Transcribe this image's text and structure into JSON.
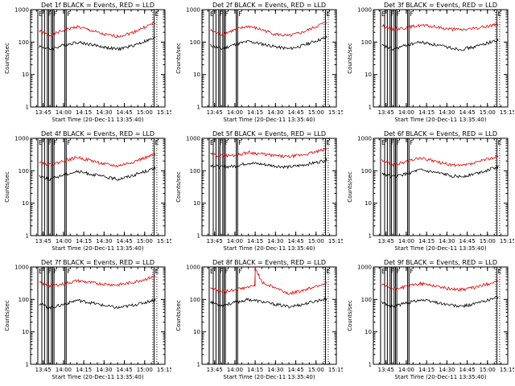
{
  "colors": {
    "events": "#000000",
    "lld": "#e00000",
    "axis": "#000000",
    "background": "#ffffff"
  },
  "chart_data": [
    {
      "type": "line",
      "title": "Det 1f BLACK = Events, RED = LLD",
      "xlabel": "Start Time (20-Dec-11 13:35:40)",
      "ylabel": "Counts/sec",
      "xlim": [
        "13:35:40",
        "15:15:00"
      ],
      "ylim": [
        1,
        1000
      ],
      "yscale": "log",
      "grid": false,
      "x_tick_labels": [
        "13:45",
        "14:00",
        "14:15",
        "14:30",
        "14:45",
        "15:00",
        "15:15"
      ],
      "y_tick_labels": [
        "1",
        "10",
        "100",
        "1000"
      ],
      "flag_labels": [
        "E",
        "F",
        "F",
        "F",
        "E"
      ],
      "series": [
        {
          "x": [
            "13:42",
            "13:50",
            "14:00",
            "14:10",
            "14:20",
            "14:30",
            "14:40",
            "14:50",
            "15:00",
            "15:08"
          ],
          "values": [
            220,
            160,
            230,
            300,
            230,
            170,
            150,
            190,
            290,
            400
          ]
        },
        {
          "x": [
            "13:42",
            "13:50",
            "14:00",
            "14:10",
            "14:20",
            "14:30",
            "14:40",
            "14:50",
            "15:00",
            "15:08"
          ],
          "values": [
            75,
            60,
            80,
            100,
            85,
            70,
            60,
            75,
            105,
            135
          ]
        }
      ]
    },
    {
      "type": "line",
      "title": "Det 2f BLACK = Events, RED = LLD",
      "xlabel": "Start Time (20-Dec-11 13:35:40)",
      "ylabel": "Counts/sec",
      "xlim": [
        "13:35:40",
        "15:15:00"
      ],
      "ylim": [
        1,
        1000
      ],
      "yscale": "log",
      "grid": false,
      "x_tick_labels": [
        "13:45",
        "14:00",
        "14:15",
        "14:30",
        "14:45",
        "15:00",
        "15:15"
      ],
      "y_tick_labels": [
        "1",
        "10",
        "100",
        "1000"
      ],
      "flag_labels": [
        "E",
        "F",
        "F",
        "F",
        "E"
      ],
      "series": [
        {
          "x": [
            "13:42",
            "13:50",
            "14:00",
            "14:10",
            "14:20",
            "14:30",
            "14:40",
            "14:50",
            "15:00",
            "15:08"
          ],
          "values": [
            230,
            170,
            240,
            310,
            240,
            175,
            155,
            200,
            300,
            420
          ]
        },
        {
          "x": [
            "13:42",
            "13:50",
            "14:00",
            "14:10",
            "14:20",
            "14:30",
            "14:40",
            "14:50",
            "15:00",
            "15:08"
          ],
          "values": [
            80,
            62,
            85,
            105,
            88,
            72,
            62,
            78,
            110,
            140
          ]
        }
      ]
    },
    {
      "type": "line",
      "title": "Det 3f BLACK = Events, RED = LLD",
      "xlabel": "Start Time (20-Dec-11 13:35:40)",
      "ylabel": "Counts/sec",
      "xlim": [
        "13:35:40",
        "15:15:00"
      ],
      "ylim": [
        1,
        1000
      ],
      "yscale": "log",
      "grid": false,
      "x_tick_labels": [
        "13:45",
        "14:00",
        "14:15",
        "14:30",
        "14:45",
        "15:00",
        "15:15"
      ],
      "y_tick_labels": [
        "1",
        "10",
        "100",
        "1000"
      ],
      "flag_labels": [
        "E",
        "F",
        "F",
        "F",
        "E"
      ],
      "series": [
        {
          "x": [
            "13:42",
            "13:50",
            "14:00",
            "14:10",
            "14:20",
            "14:30",
            "14:40",
            "14:50",
            "15:00",
            "15:08"
          ],
          "values": [
            320,
            250,
            280,
            330,
            300,
            260,
            240,
            260,
            310,
            360
          ]
        },
        {
          "x": [
            "13:42",
            "13:50",
            "14:00",
            "14:10",
            "14:20",
            "14:30",
            "14:40",
            "14:50",
            "15:00",
            "15:08"
          ],
          "values": [
            80,
            60,
            80,
            100,
            85,
            70,
            60,
            70,
            95,
            115
          ]
        }
      ]
    },
    {
      "type": "line",
      "title": "Det 4f BLACK = Events, RED = LLD",
      "xlabel": "Start Time (20-Dec-11 13:35:40)",
      "ylabel": "Counts/sec",
      "xlim": [
        "13:35:40",
        "15:15:00"
      ],
      "ylim": [
        1,
        1000
      ],
      "yscale": "log",
      "grid": false,
      "x_tick_labels": [
        "13:45",
        "14:00",
        "14:15",
        "14:30",
        "14:45",
        "15:00",
        "15:15"
      ],
      "y_tick_labels": [
        "1",
        "10",
        "100",
        "1000"
      ],
      "flag_labels": [
        "E",
        "F",
        "F",
        "F",
        "E"
      ],
      "series": [
        {
          "x": [
            "13:42",
            "13:50",
            "14:00",
            "14:10",
            "14:20",
            "14:30",
            "14:40",
            "14:50",
            "15:00",
            "15:08"
          ],
          "values": [
            200,
            150,
            200,
            260,
            210,
            160,
            140,
            180,
            250,
            320
          ]
        },
        {
          "x": [
            "13:42",
            "13:50",
            "14:00",
            "14:10",
            "14:20",
            "14:30",
            "14:40",
            "14:50",
            "15:00",
            "15:08"
          ],
          "values": [
            70,
            55,
            75,
            95,
            80,
            65,
            55,
            70,
            95,
            120
          ]
        }
      ]
    },
    {
      "type": "line",
      "title": "Det 5f BLACK = Events, RED = LLD",
      "xlabel": "Start Time (20-Dec-11 13:35:40)",
      "ylabel": "Counts/sec",
      "xlim": [
        "13:35:40",
        "15:15:00"
      ],
      "ylim": [
        1,
        1000
      ],
      "yscale": "log",
      "grid": false,
      "x_tick_labels": [
        "13:45",
        "14:00",
        "14:15",
        "14:30",
        "14:45",
        "15:00",
        "15:15"
      ],
      "y_tick_labels": [
        "1",
        "10",
        "100",
        "1000"
      ],
      "flag_labels": [
        "E",
        "F",
        "F",
        "F",
        "E"
      ],
      "series": [
        {
          "x": [
            "13:42",
            "13:50",
            "14:00",
            "14:10",
            "14:20",
            "14:30",
            "14:40",
            "14:50",
            "15:00",
            "15:08"
          ],
          "values": [
            320,
            290,
            300,
            370,
            330,
            290,
            270,
            310,
            380,
            480
          ]
        },
        {
          "x": [
            "13:42",
            "13:50",
            "14:00",
            "14:10",
            "14:20",
            "14:30",
            "14:40",
            "14:50",
            "15:00",
            "15:08"
          ],
          "values": [
            150,
            130,
            140,
            175,
            160,
            140,
            130,
            150,
            180,
            220
          ]
        }
      ]
    },
    {
      "type": "line",
      "title": "Det 6f BLACK = Events, RED = LLD",
      "xlabel": "Start Time (20-Dec-11 13:35:40)",
      "ylabel": "Counts/sec",
      "xlim": [
        "13:35:40",
        "15:15:00"
      ],
      "ylim": [
        1,
        1000
      ],
      "yscale": "log",
      "grid": false,
      "x_tick_labels": [
        "13:45",
        "14:00",
        "14:15",
        "14:30",
        "14:45",
        "15:00",
        "15:15"
      ],
      "y_tick_labels": [
        "1",
        "10",
        "100",
        "1000"
      ],
      "flag_labels": [
        "E",
        "F",
        "F",
        "F",
        "E"
      ],
      "series": [
        {
          "x": [
            "13:42",
            "13:50",
            "14:00",
            "14:10",
            "14:20",
            "14:30",
            "14:40",
            "14:50",
            "15:00",
            "15:08"
          ],
          "values": [
            210,
            150,
            190,
            250,
            200,
            160,
            140,
            170,
            230,
            280
          ]
        },
        {
          "x": [
            "13:42",
            "13:50",
            "14:00",
            "14:10",
            "14:20",
            "14:30",
            "14:40",
            "14:50",
            "15:00",
            "15:08"
          ],
          "values": [
            85,
            65,
            80,
            105,
            90,
            75,
            65,
            80,
            105,
            135
          ]
        }
      ]
    },
    {
      "type": "line",
      "title": "Det 7f BLACK = Events, RED = LLD",
      "xlabel": "Start Time (20-Dec-11 13:35:40)",
      "ylabel": "Counts/sec",
      "xlim": [
        "13:35:40",
        "15:15:00"
      ],
      "ylim": [
        1,
        1000
      ],
      "yscale": "log",
      "grid": false,
      "x_tick_labels": [
        "13:45",
        "14:00",
        "14:15",
        "14:30",
        "14:45",
        "15:00",
        "15:15"
      ],
      "y_tick_labels": [
        "1",
        "10",
        "100",
        "1000"
      ],
      "flag_labels": [
        "E",
        "F",
        "F",
        "F",
        "E"
      ],
      "series": [
        {
          "x": [
            "13:42",
            "13:50",
            "14:00",
            "14:10",
            "14:20",
            "14:30",
            "14:40",
            "14:50",
            "15:00",
            "15:08"
          ],
          "values": [
            330,
            260,
            300,
            380,
            330,
            300,
            280,
            330,
            420,
            520
          ]
        },
        {
          "x": [
            "13:42",
            "13:50",
            "14:00",
            "14:10",
            "14:20",
            "14:30",
            "14:40",
            "14:50",
            "15:00",
            "15:08"
          ],
          "values": [
            75,
            55,
            70,
            95,
            80,
            65,
            55,
            65,
            80,
            100
          ]
        }
      ]
    },
    {
      "type": "line",
      "title": "Det 8f BLACK = Events, RED = LLD",
      "xlabel": "Start Time (20-Dec-11 13:35:40)",
      "ylabel": "Counts/sec",
      "xlim": [
        "13:35:40",
        "15:15:00"
      ],
      "ylim": [
        1,
        1000
      ],
      "yscale": "log",
      "grid": false,
      "x_tick_labels": [
        "13:45",
        "14:00",
        "14:15",
        "14:30",
        "14:45",
        "15:00",
        "15:15"
      ],
      "y_tick_labels": [
        "1",
        "10",
        "100",
        "1000"
      ],
      "flag_labels": [
        "E",
        "F",
        "F",
        "F",
        "E"
      ],
      "series": [
        {
          "x": [
            "13:42",
            "13:50",
            "14:00",
            "14:10",
            "14:15",
            "14:15",
            "14:20",
            "14:30",
            "14:40",
            "14:50",
            "15:00",
            "15:08"
          ],
          "values": [
            230,
            170,
            200,
            240,
            260,
            1000,
            330,
            230,
            150,
            190,
            260,
            330
          ]
        },
        {
          "x": [
            "13:42",
            "13:50",
            "14:00",
            "14:10",
            "14:20",
            "14:30",
            "14:40",
            "14:50",
            "15:00",
            "15:08"
          ],
          "values": [
            85,
            65,
            80,
            100,
            85,
            70,
            60,
            70,
            90,
            105
          ]
        }
      ]
    },
    {
      "type": "line",
      "title": "Det 9f BLACK = Events, RED = LLD",
      "xlabel": "Start Time (20-Dec-11 13:35:40)",
      "ylabel": "Counts/sec",
      "xlim": [
        "13:35:40",
        "15:15:00"
      ],
      "ylim": [
        1,
        1000
      ],
      "yscale": "log",
      "grid": false,
      "x_tick_labels": [
        "13:45",
        "14:00",
        "14:15",
        "14:30",
        "14:45",
        "15:00",
        "15:15"
      ],
      "y_tick_labels": [
        "1",
        "10",
        "100",
        "1000"
      ],
      "flag_labels": [
        "E",
        "F",
        "F",
        "F",
        "E"
      ],
      "series": [
        {
          "x": [
            "13:42",
            "13:50",
            "14:00",
            "14:10",
            "14:20",
            "14:30",
            "14:40",
            "14:50",
            "15:00",
            "15:08"
          ],
          "values": [
            280,
            210,
            250,
            310,
            270,
            220,
            200,
            230,
            300,
            380
          ]
        },
        {
          "x": [
            "13:42",
            "13:50",
            "14:00",
            "14:10",
            "14:20",
            "14:30",
            "14:40",
            "14:50",
            "15:00",
            "15:08"
          ],
          "values": [
            80,
            60,
            78,
            98,
            85,
            70,
            60,
            72,
            95,
            120
          ]
        }
      ]
    }
  ]
}
